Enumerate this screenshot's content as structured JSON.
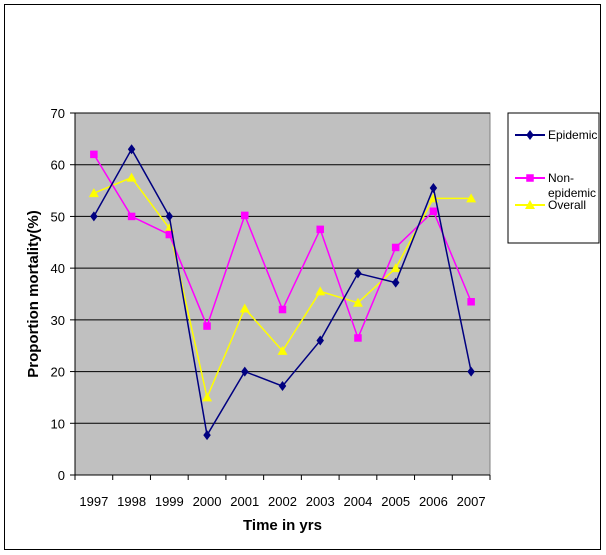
{
  "chart_data": {
    "type": "line",
    "title": "",
    "xlabel": "Time in yrs",
    "ylabel": "Proportion mortality(%)",
    "ylim": [
      0,
      70
    ],
    "yticks": [
      0,
      10,
      20,
      30,
      40,
      50,
      60,
      70
    ],
    "grid": true,
    "legend_position": "right",
    "plot_background": "#c0c0c0",
    "categories": [
      "1997",
      "1998",
      "1999",
      "2000",
      "2001",
      "2002",
      "2003",
      "2004",
      "2005",
      "2006",
      "2007"
    ],
    "series": [
      {
        "name": "Epidemic",
        "color": "#000080",
        "marker": "diamond",
        "values": [
          50,
          63,
          50,
          7.7,
          20,
          17.2,
          26,
          39,
          37.2,
          55.5,
          20
        ]
      },
      {
        "name": "Non-epidemic",
        "legend_lines": [
          "Non-",
          "epidemic"
        ],
        "color": "#ff00ff",
        "marker": "square",
        "values": [
          62,
          50,
          46.5,
          28.8,
          50.2,
          32,
          47.5,
          26.5,
          44,
          51,
          33.5
        ]
      },
      {
        "name": "Overall",
        "color": "#ffff00",
        "marker": "triangle",
        "values": [
          54.5,
          57.5,
          47.7,
          15,
          32.2,
          24,
          35.5,
          33.3,
          40,
          53.5,
          53.5
        ]
      }
    ]
  }
}
